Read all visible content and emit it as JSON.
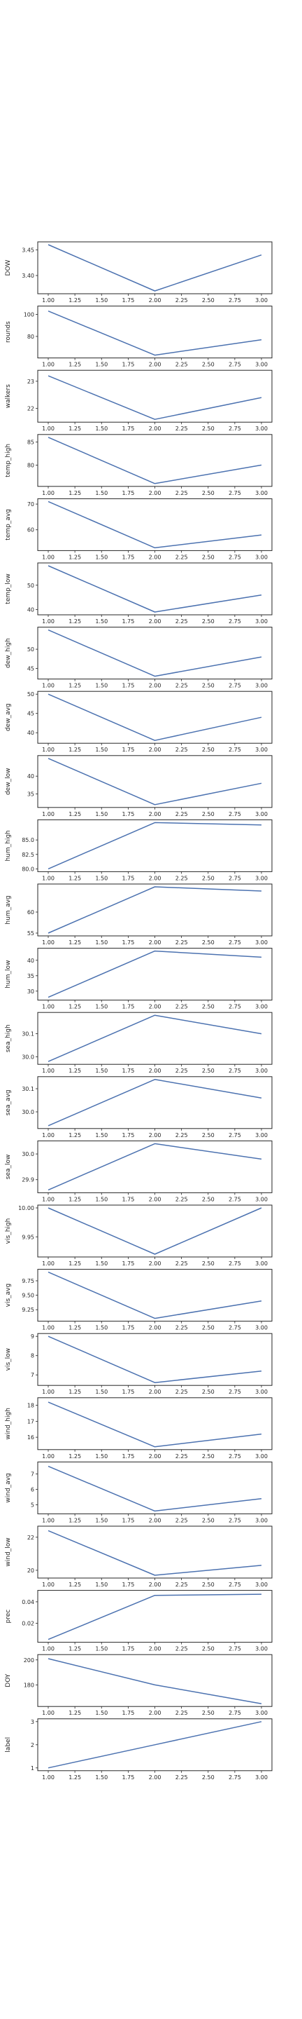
{
  "chart_data": [
    {
      "type": "line",
      "ylabel": "DOW",
      "x": [
        1,
        2,
        3
      ],
      "values": [
        3.46,
        3.37,
        3.44
      ],
      "ylim": [
        3.37,
        3.46
      ],
      "yticks": [
        3.4,
        3.45
      ],
      "ytick_labels": [
        "3.40",
        "3.45"
      ]
    },
    {
      "type": "line",
      "ylabel": "rounds",
      "x": [
        1,
        2,
        3
      ],
      "values": [
        103,
        63,
        77
      ],
      "ylim": [
        63,
        105
      ],
      "yticks": [
        80,
        100
      ],
      "ytick_labels": [
        "80",
        "100"
      ]
    },
    {
      "type": "line",
      "ylabel": "walkers",
      "x": [
        1,
        2,
        3
      ],
      "values": [
        23.2,
        21.6,
        22.4
      ],
      "ylim": [
        21.6,
        23.3
      ],
      "yticks": [
        22,
        23
      ],
      "ytick_labels": [
        "22",
        "23"
      ]
    },
    {
      "type": "line",
      "ylabel": "temp_high",
      "x": [
        1,
        2,
        3
      ],
      "values": [
        86,
        76,
        80
      ],
      "ylim": [
        76,
        86
      ],
      "yticks": [
        80,
        85
      ],
      "ytick_labels": [
        "80",
        "85"
      ]
    },
    {
      "type": "line",
      "ylabel": "temp_avg",
      "x": [
        1,
        2,
        3
      ],
      "values": [
        71,
        53,
        58
      ],
      "ylim": [
        53,
        71
      ],
      "yticks": [
        60,
        70
      ],
      "ytick_labels": [
        "60",
        "70"
      ]
    },
    {
      "type": "line",
      "ylabel": "temp_low",
      "x": [
        1,
        2,
        3
      ],
      "values": [
        58,
        39,
        46
      ],
      "ylim": [
        39,
        58
      ],
      "yticks": [
        40,
        50
      ],
      "ytick_labels": [
        "40",
        "50"
      ]
    },
    {
      "type": "line",
      "ylabel": "dew_high",
      "x": [
        1,
        2,
        3
      ],
      "values": [
        55,
        43,
        48
      ],
      "ylim": [
        43,
        55
      ],
      "yticks": [
        45,
        50
      ],
      "ytick_labels": [
        "45",
        "50"
      ]
    },
    {
      "type": "line",
      "ylabel": "dew_avg",
      "x": [
        1,
        2,
        3
      ],
      "values": [
        50,
        38,
        44
      ],
      "ylim": [
        38,
        50
      ],
      "yticks": [
        40,
        45,
        50
      ],
      "ytick_labels": [
        "40",
        "45",
        "50"
      ]
    },
    {
      "type": "line",
      "ylabel": "dew_low",
      "x": [
        1,
        2,
        3
      ],
      "values": [
        45,
        32,
        38
      ],
      "ylim": [
        32,
        45
      ],
      "yticks": [
        35,
        40
      ],
      "ytick_labels": [
        "35",
        "40"
      ]
    },
    {
      "type": "line",
      "ylabel": "hum_high",
      "x": [
        1,
        2,
        3
      ],
      "values": [
        80.0,
        88.0,
        87.6
      ],
      "ylim": [
        80,
        88
      ],
      "yticks": [
        80.0,
        82.5,
        85.0
      ],
      "ytick_labels": [
        "80.0",
        "82.5",
        "85.0"
      ]
    },
    {
      "type": "line",
      "ylabel": "hum_avg",
      "x": [
        1,
        2,
        3
      ],
      "values": [
        55,
        66,
        65
      ],
      "ylim": [
        55,
        66
      ],
      "yticks": [
        55,
        60
      ],
      "ytick_labels": [
        "55",
        "60"
      ]
    },
    {
      "type": "line",
      "ylabel": "hum_low",
      "x": [
        1,
        2,
        3
      ],
      "values": [
        28,
        43,
        41
      ],
      "ylim": [
        28,
        43
      ],
      "yticks": [
        30,
        35,
        40
      ],
      "ytick_labels": [
        "30",
        "35",
        "40"
      ]
    },
    {
      "type": "line",
      "ylabel": "sea_high",
      "x": [
        1,
        2,
        3
      ],
      "values": [
        29.98,
        30.18,
        30.1
      ],
      "ylim": [
        29.98,
        30.18
      ],
      "yticks": [
        30.0,
        30.1
      ],
      "ytick_labels": [
        "30.0",
        "30.1"
      ]
    },
    {
      "type": "line",
      "ylabel": "sea_avg",
      "x": [
        1,
        2,
        3
      ],
      "values": [
        29.94,
        30.14,
        30.06
      ],
      "ylim": [
        29.94,
        30.14
      ],
      "yticks": [
        30.0,
        30.1
      ],
      "ytick_labels": [
        "30.0",
        "30.1"
      ]
    },
    {
      "type": "line",
      "ylabel": "sea_low",
      "x": [
        1,
        2,
        3
      ],
      "values": [
        29.86,
        30.04,
        29.98
      ],
      "ylim": [
        29.86,
        30.04
      ],
      "yticks": [
        29.9,
        30.0
      ],
      "ytick_labels": [
        "29.9",
        "30.0"
      ]
    },
    {
      "type": "line",
      "ylabel": "vis_high",
      "x": [
        1,
        2,
        3
      ],
      "values": [
        10.0,
        9.92,
        10.0
      ],
      "ylim": [
        9.92,
        10.0
      ],
      "yticks": [
        9.95,
        10.0
      ],
      "ytick_labels": [
        "9.95",
        "10.00"
      ]
    },
    {
      "type": "line",
      "ylabel": "vis_avg",
      "x": [
        1,
        2,
        3
      ],
      "values": [
        9.9,
        9.1,
        9.4
      ],
      "ylim": [
        9.1,
        9.9
      ],
      "yticks": [
        9.25,
        9.5,
        9.75
      ],
      "ytick_labels": [
        "9.25",
        "9.50",
        "9.75"
      ]
    },
    {
      "type": "line",
      "ylabel": "vis_low",
      "x": [
        1,
        2,
        3
      ],
      "values": [
        9.0,
        6.6,
        7.2
      ],
      "ylim": [
        6.6,
        9.0
      ],
      "yticks": [
        7,
        8,
        9
      ],
      "ytick_labels": [
        "7",
        "8",
        "9"
      ]
    },
    {
      "type": "line",
      "ylabel": "wind_high",
      "x": [
        1,
        2,
        3
      ],
      "values": [
        18.2,
        15.4,
        16.2
      ],
      "ylim": [
        15.4,
        18.3
      ],
      "yticks": [
        16,
        17,
        18
      ],
      "ytick_labels": [
        "16",
        "17",
        "18"
      ]
    },
    {
      "type": "line",
      "ylabel": "wind_avg",
      "x": [
        1,
        2,
        3
      ],
      "values": [
        7.5,
        4.6,
        5.4
      ],
      "ylim": [
        4.6,
        7.6
      ],
      "yticks": [
        5,
        6,
        7
      ],
      "ytick_labels": [
        "5",
        "6",
        "7"
      ]
    },
    {
      "type": "line",
      "ylabel": "wind_low",
      "x": [
        1,
        2,
        3
      ],
      "values": [
        22.4,
        19.7,
        20.3
      ],
      "ylim": [
        19.7,
        22.5
      ],
      "yticks": [
        20,
        22
      ],
      "ytick_labels": [
        "20",
        "22"
      ]
    },
    {
      "type": "line",
      "ylabel": "prec",
      "x": [
        1,
        2,
        3
      ],
      "values": [
        0.005,
        0.046,
        0.047
      ],
      "ylim": [
        0.005,
        0.048
      ],
      "yticks": [
        0.02,
        0.04
      ],
      "ytick_labels": [
        "0.02",
        "0.04"
      ]
    },
    {
      "type": "line",
      "ylabel": "DOY",
      "x": [
        1,
        2,
        3
      ],
      "values": [
        201,
        180,
        165
      ],
      "ylim": [
        165,
        202
      ],
      "yticks": [
        180,
        200
      ],
      "ytick_labels": [
        "180",
        "200"
      ]
    },
    {
      "type": "line",
      "ylabel": "label",
      "x": [
        1,
        2,
        3
      ],
      "values": [
        1,
        2,
        3
      ],
      "ylim": [
        1,
        3
      ],
      "yticks": [
        1,
        2,
        3
      ],
      "ytick_labels": [
        "1",
        "2",
        "3"
      ]
    }
  ],
  "x_axis": {
    "xlim": [
      1.0,
      3.0
    ],
    "ticks": [
      1.0,
      1.25,
      1.5,
      1.75,
      2.0,
      2.25,
      2.5,
      2.75,
      3.0
    ],
    "tick_labels": [
      "1.00",
      "1.25",
      "1.50",
      "1.75",
      "2.00",
      "2.25",
      "2.50",
      "2.75",
      "3.00"
    ]
  },
  "colors": {
    "line": "#4c72b0",
    "axes_edge": "#262626",
    "text": "#262626",
    "background": "#ffffff"
  }
}
